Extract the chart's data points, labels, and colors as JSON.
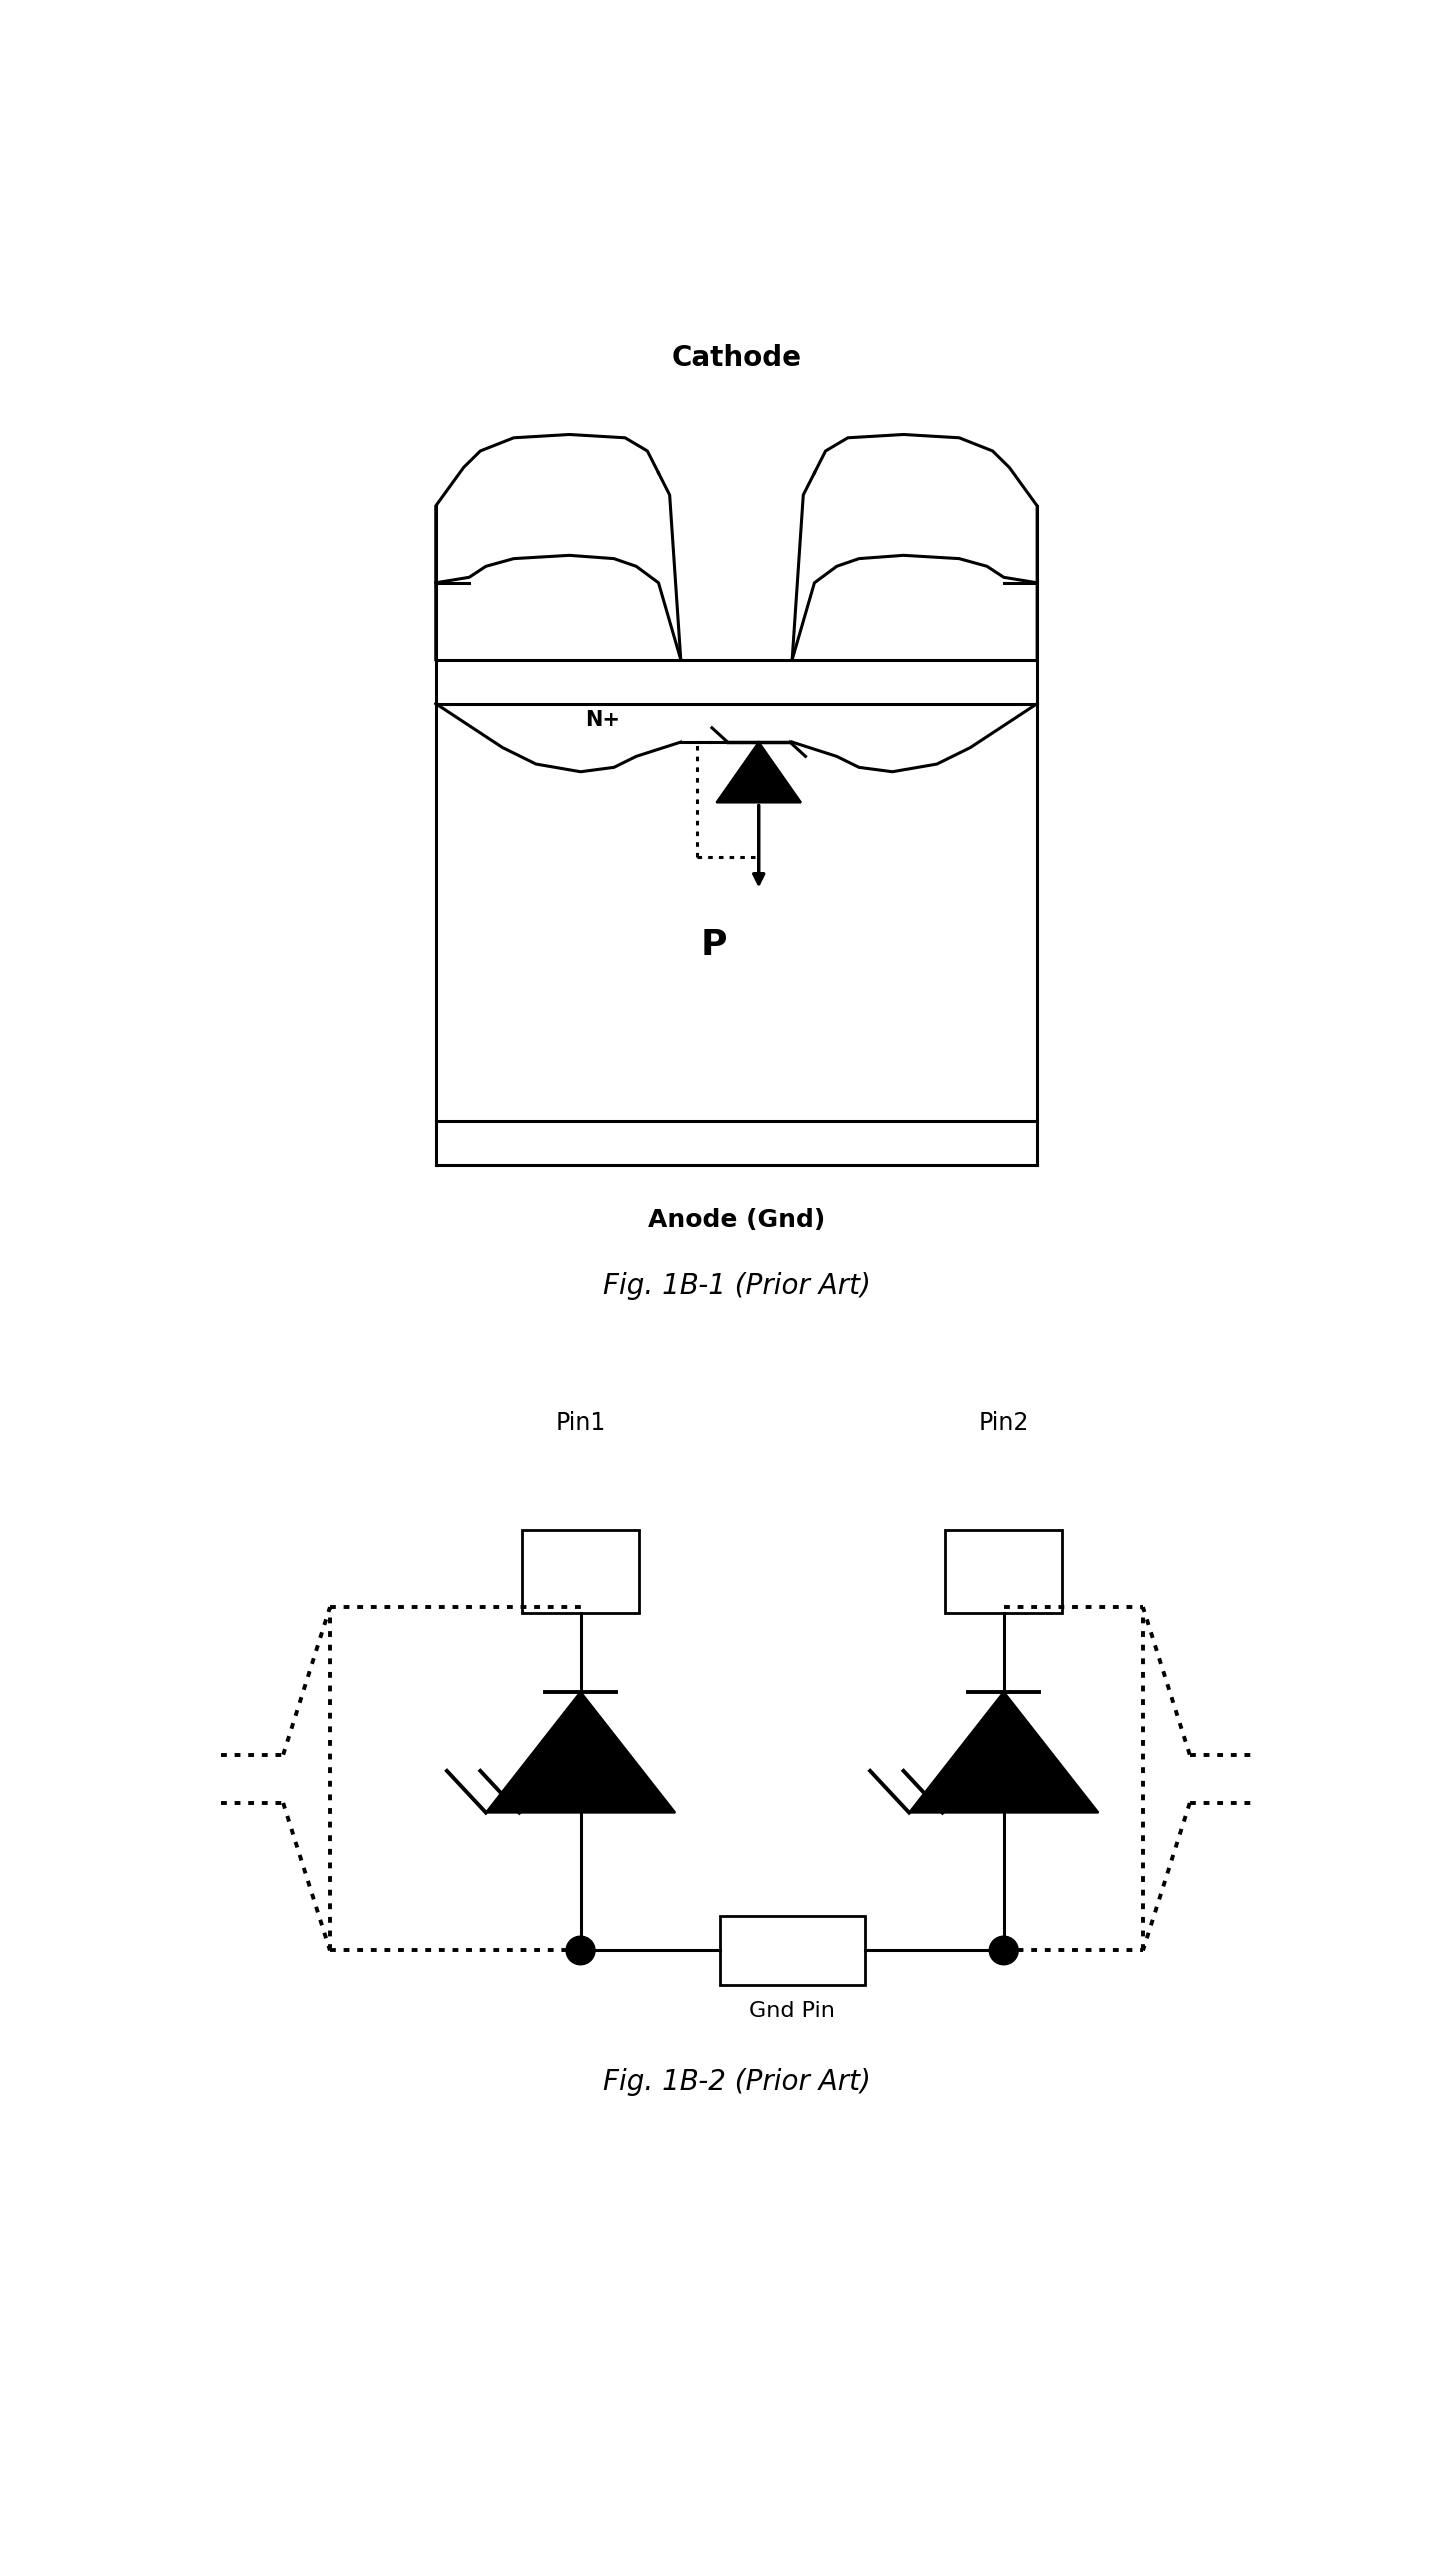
{
  "bg_color": "#ffffff",
  "fig_width": 14.37,
  "fig_height": 25.68,
  "fig1b1_title": "Cathode",
  "fig1b1_anode": "Anode (Gnd)",
  "fig1b1_label": "Fig. 1B-1 (Prior Art)",
  "fig1b1_P": "P",
  "fig1b1_Nplus": "N+",
  "fig1b2_pin1": "Pin1",
  "fig1b2_pin2": "Pin2",
  "fig1b2_gnd": "Gnd Pin",
  "fig1b2_label": "Fig. 1B-2 (Prior Art)"
}
